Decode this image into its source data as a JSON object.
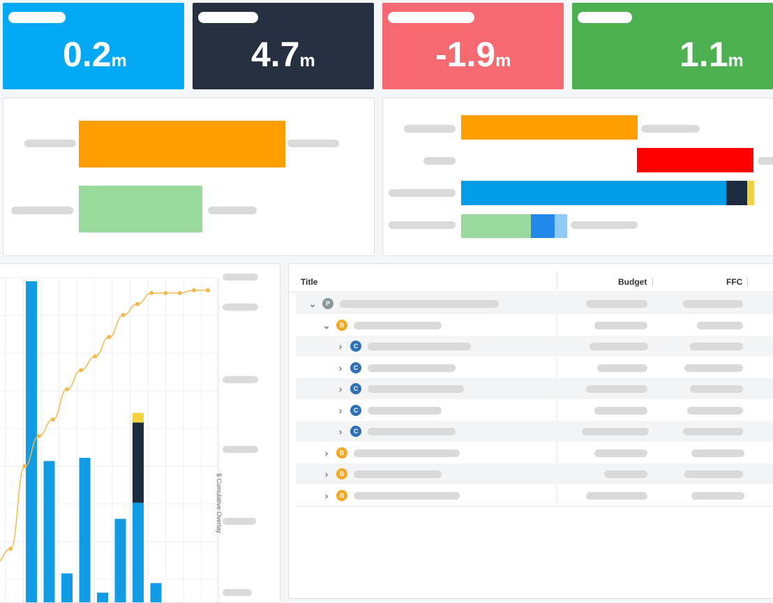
{
  "kpis": [
    {
      "value": "0.2",
      "unit": "m",
      "color": "#03a9f4"
    },
    {
      "value": "4.7",
      "unit": "m",
      "color": "#263040"
    },
    {
      "value": "-1.9",
      "unit": "m",
      "color": "#f76970"
    },
    {
      "value": "1.1",
      "unit": "m",
      "color": "#4caf50"
    }
  ],
  "summary_colors": {
    "orange": "#ffa000",
    "light_green": "#9ad99c",
    "red": "#ff0000",
    "blue": "#029be5",
    "navy": "#1c2b3d",
    "yellow": "#f0d240",
    "mid_blue": "#2389e8",
    "pale_blue": "#90caf9"
  },
  "chart_data": {
    "type": "bar",
    "ylabel_right": "$ Cumulative Overlay",
    "series": [
      {
        "kind": "bar",
        "color": "#139ce6",
        "values": [
          1.0,
          0.44,
          0.09,
          0.45,
          0.03,
          0.26,
          0.31,
          0.06
        ]
      },
      {
        "kind": "bar-stack",
        "color": "#1c2b3d",
        "values": [
          0,
          0,
          0,
          0,
          0,
          0,
          0.25,
          0
        ]
      },
      {
        "kind": "bar-stack",
        "color": "#f3d23e",
        "values": [
          0,
          0,
          0,
          0,
          0,
          0,
          0.03,
          0
        ]
      },
      {
        "kind": "line",
        "color": "#f2b84a",
        "values": [
          0.0,
          0.05,
          0.35,
          0.46,
          0.52,
          0.63,
          0.7,
          0.75,
          0.82,
          0.9,
          0.94,
          0.98,
          0.98,
          0.98,
          0.99,
          0.99
        ]
      }
    ]
  },
  "table": {
    "col_title": "Title",
    "col_budget": "Budget",
    "col_ffc": "FFC",
    "rows": [
      {
        "badge": "P",
        "level": 0,
        "expanded": true
      },
      {
        "badge": "B",
        "level": 1,
        "expanded": true
      },
      {
        "badge": "C",
        "level": 2,
        "expanded": false
      },
      {
        "badge": "C",
        "level": 2,
        "expanded": false
      },
      {
        "badge": "C",
        "level": 2,
        "expanded": false
      },
      {
        "badge": "C",
        "level": 2,
        "expanded": false
      },
      {
        "badge": "C",
        "level": 2,
        "expanded": false
      },
      {
        "badge": "B",
        "level": 1,
        "expanded": false
      },
      {
        "badge": "B",
        "level": 1,
        "expanded": false
      },
      {
        "badge": "B",
        "level": 1,
        "expanded": false
      }
    ],
    "chevrons": {
      "expanded": "⌄",
      "collapsed": "›"
    }
  }
}
